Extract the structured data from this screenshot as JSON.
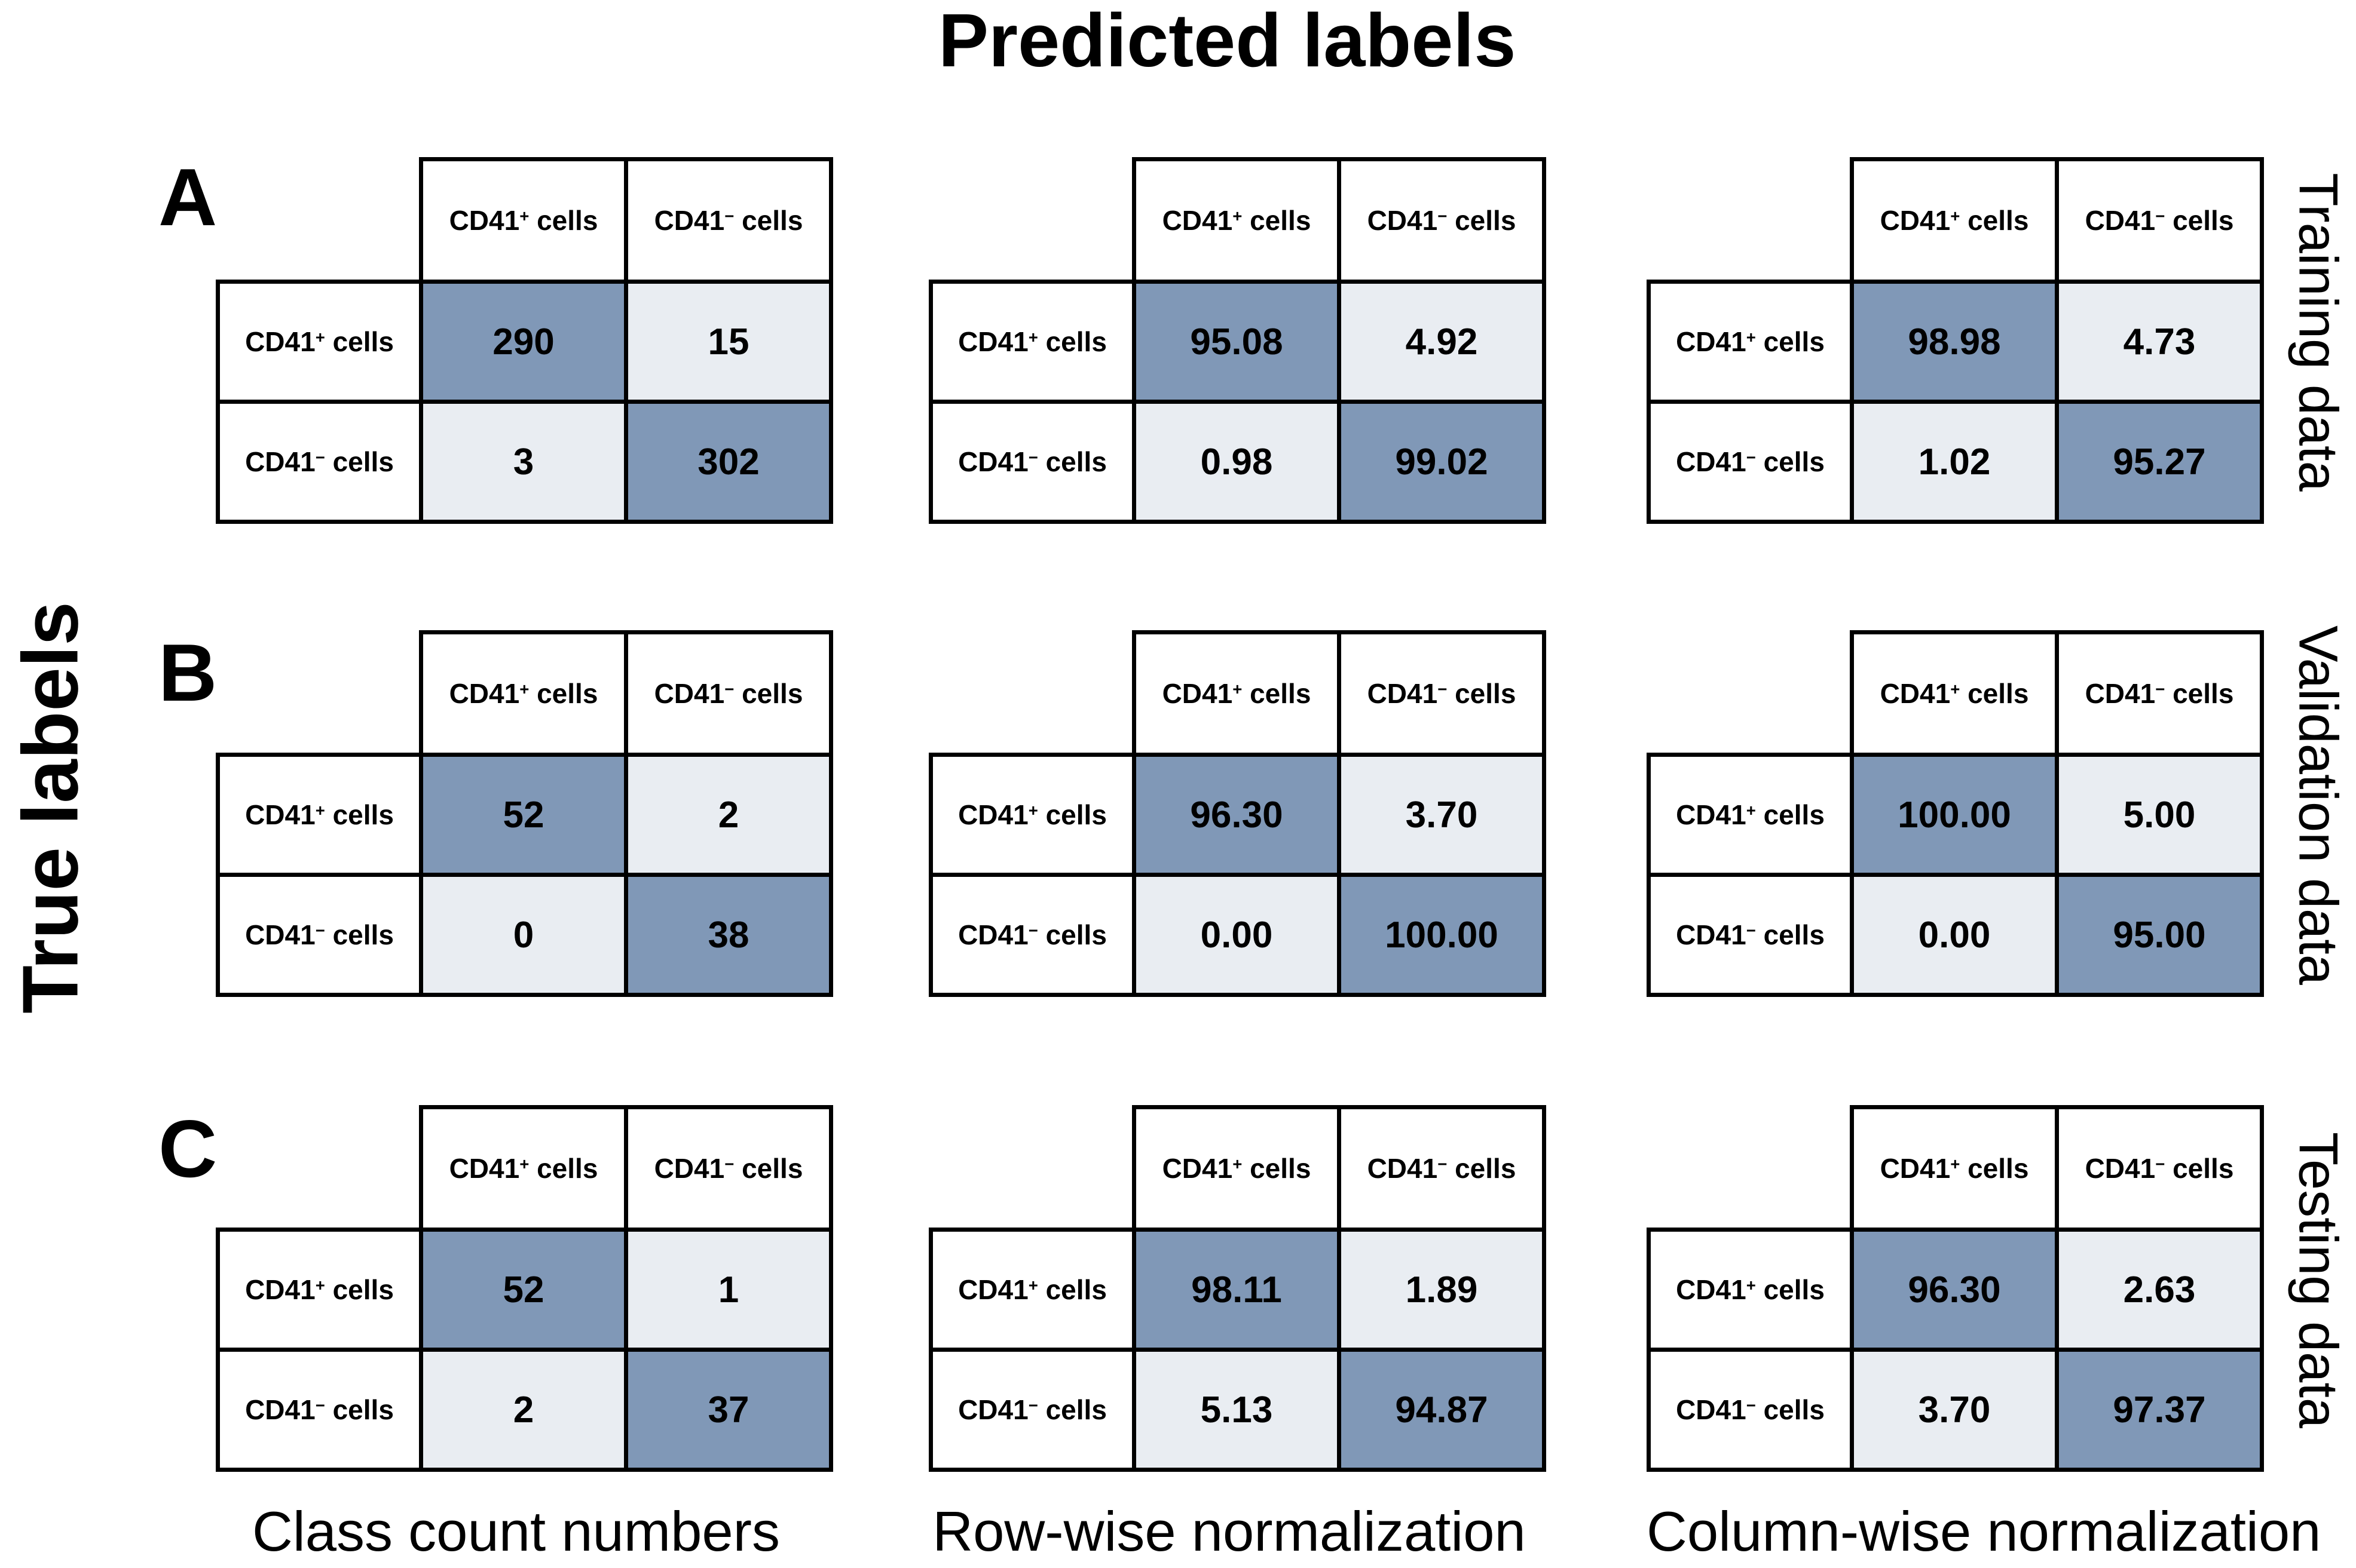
{
  "title": "Predicted labels",
  "y_axis_label": "True labels",
  "panel_letters": [
    "A",
    "B",
    "C"
  ],
  "row_labels_right": [
    "Training data",
    "Validation data",
    "Testing data"
  ],
  "column_captions": [
    "Class count numbers",
    "Row-wise normalization",
    "Column-wise normalization"
  ],
  "class_labels": {
    "positive": {
      "base": "CD41",
      "sup": "+",
      "rest": " cells"
    },
    "negative": {
      "base": "CD41",
      "sup": "−",
      "rest": " cells"
    }
  },
  "colors": {
    "diagonal": "#8098B7",
    "off_diagonal": "#E9EDF2",
    "border": "#000000",
    "background": "#FFFFFF",
    "text": "#000000"
  },
  "chart_data": {
    "type": "heatmap",
    "title": "Predicted labels",
    "ylabel": "True labels",
    "grid": {
      "rows": 3,
      "cols": 3
    },
    "x_categories": [
      "CD41+ cells",
      "CD41− cells"
    ],
    "y_categories": [
      "CD41+ cells",
      "CD41− cells"
    ],
    "row_datasets": [
      "Training data",
      "Validation data",
      "Testing data"
    ],
    "col_normalizations": [
      "Class count numbers",
      "Row-wise normalization",
      "Column-wise normalization"
    ],
    "matrices": [
      {
        "panel": "A",
        "dataset": "Training data",
        "normalization": "Class count numbers",
        "values": [
          [
            290,
            15
          ],
          [
            3,
            302
          ]
        ],
        "display": [
          [
            "290",
            "15"
          ],
          [
            "3",
            "302"
          ]
        ]
      },
      {
        "panel": "A",
        "dataset": "Training data",
        "normalization": "Row-wise normalization",
        "values": [
          [
            95.08,
            4.92
          ],
          [
            0.98,
            99.02
          ]
        ],
        "display": [
          [
            "95.08",
            "4.92"
          ],
          [
            "0.98",
            "99.02"
          ]
        ]
      },
      {
        "panel": "A",
        "dataset": "Training data",
        "normalization": "Column-wise normalization",
        "values": [
          [
            98.98,
            4.73
          ],
          [
            1.02,
            95.27
          ]
        ],
        "display": [
          [
            "98.98",
            "4.73"
          ],
          [
            "1.02",
            "95.27"
          ]
        ]
      },
      {
        "panel": "B",
        "dataset": "Validation data",
        "normalization": "Class count numbers",
        "values": [
          [
            52,
            2
          ],
          [
            0,
            38
          ]
        ],
        "display": [
          [
            "52",
            "2"
          ],
          [
            "0",
            "38"
          ]
        ]
      },
      {
        "panel": "B",
        "dataset": "Validation data",
        "normalization": "Row-wise normalization",
        "values": [
          [
            96.3,
            3.7
          ],
          [
            0.0,
            100.0
          ]
        ],
        "display": [
          [
            "96.30",
            "3.70"
          ],
          [
            "0.00",
            "100.00"
          ]
        ]
      },
      {
        "panel": "B",
        "dataset": "Validation data",
        "normalization": "Column-wise normalization",
        "values": [
          [
            100.0,
            5.0
          ],
          [
            0.0,
            95.0
          ]
        ],
        "display": [
          [
            "100.00",
            "5.00"
          ],
          [
            "0.00",
            "95.00"
          ]
        ]
      },
      {
        "panel": "C",
        "dataset": "Testing data",
        "normalization": "Class count numbers",
        "values": [
          [
            52,
            1
          ],
          [
            2,
            37
          ]
        ],
        "display": [
          [
            "52",
            "1"
          ],
          [
            "2",
            "37"
          ]
        ]
      },
      {
        "panel": "C",
        "dataset": "Testing data",
        "normalization": "Row-wise normalization",
        "values": [
          [
            98.11,
            1.89
          ],
          [
            5.13,
            94.87
          ]
        ],
        "display": [
          [
            "98.11",
            "1.89"
          ],
          [
            "5.13",
            "94.87"
          ]
        ]
      },
      {
        "panel": "C",
        "dataset": "Testing data",
        "normalization": "Column-wise normalization",
        "values": [
          [
            96.3,
            2.63
          ],
          [
            3.7,
            97.37
          ]
        ],
        "display": [
          [
            "96.30",
            "2.63"
          ],
          [
            "3.70",
            "97.37"
          ]
        ]
      }
    ]
  }
}
